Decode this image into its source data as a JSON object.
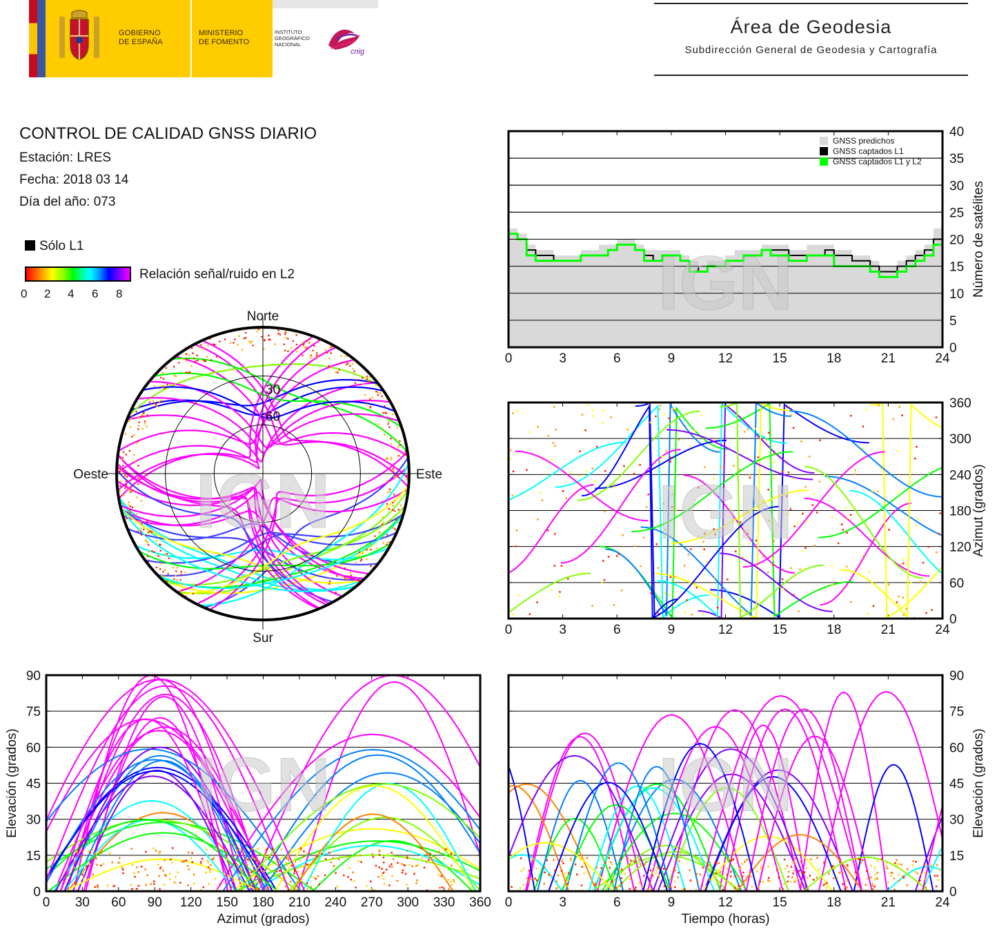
{
  "header": {
    "gov_line1": "GOBIERNO",
    "gov_line2": "DE ESPAÑA",
    "min_line1": "MINISTERIO",
    "min_line2": "DE FOMENTO",
    "ign_line1": "INSTITUTO",
    "ign_line2": "GEOGRÁFICO",
    "ign_line3": "NACIONAL",
    "cnig": "cnig",
    "area_title": "Área de Geodesia",
    "area_subtitle": "Subdirección General de Geodesia y Cartografía"
  },
  "report": {
    "title": "CONTROL DE CALIDAD GNSS DIARIO",
    "station": "Estación: LRES",
    "date": "Fecha: 2018 03 14",
    "doy": "Día del año: 073",
    "legend_l1": "Sólo L1",
    "snr_label": "Relación señal/ruido en L2",
    "snr_ticks": [
      "0",
      "2",
      "4",
      "6",
      "8"
    ]
  },
  "colors": {
    "snr_scale": [
      "#ff0000",
      "#ff8000",
      "#ffff00",
      "#80ff00",
      "#00ff00",
      "#00ffc0",
      "#00ffff",
      "#0080ff",
      "#0000ff",
      "#8000ff",
      "#ff00ff"
    ],
    "l1_only": "#000000",
    "predicted": "#d9d9d9",
    "l1l2": "#00ff00",
    "watermark": "#c8c8c8"
  },
  "chart_data": [
    {
      "id": "satellite_count",
      "type": "area",
      "watermark": "IGN",
      "x_ticks": [
        "0",
        "3",
        "6",
        "9",
        "12",
        "15",
        "18",
        "21",
        "24"
      ],
      "y_ticks": [
        "0",
        "5",
        "10",
        "15",
        "20",
        "25",
        "30",
        "35",
        "40"
      ],
      "xlim": [
        0,
        24
      ],
      "ylim": [
        0,
        40
      ],
      "ylabel": "Número de satélites",
      "grid": true,
      "legend_position": "top-right",
      "legend": [
        "GNSS predichos",
        "GNSS captados L1",
        "GNSS captados L1 y L2"
      ],
      "x": [
        0,
        0.5,
        1,
        1.5,
        2,
        2.5,
        3,
        3.5,
        4,
        4.5,
        5,
        5.5,
        6,
        6.5,
        7,
        7.5,
        8,
        8.5,
        9,
        9.5,
        10,
        10.5,
        11,
        11.5,
        12,
        12.5,
        13,
        13.5,
        14,
        14.5,
        15,
        15.5,
        16,
        16.5,
        17,
        17.5,
        18,
        18.5,
        19,
        19.5,
        20,
        20.5,
        21,
        21.5,
        22,
        22.5,
        23,
        23.5,
        24
      ],
      "series": [
        {
          "name": "GNSS predichos",
          "values": [
            22,
            21,
            19,
            18,
            18,
            17,
            17,
            17,
            18,
            18,
            19,
            19,
            20,
            20,
            19,
            18,
            18,
            18,
            18,
            17,
            16,
            15,
            16,
            16,
            17,
            18,
            18,
            18,
            19,
            19,
            19,
            18,
            18,
            19,
            19,
            19,
            18,
            18,
            17,
            17,
            16,
            15,
            15,
            16,
            17,
            18,
            19,
            22,
            20
          ]
        },
        {
          "name": "GNSS captados L1",
          "values": [
            21,
            20,
            18,
            17,
            17,
            16,
            16,
            16,
            17,
            17,
            17,
            18,
            19,
            19,
            18,
            17,
            16,
            17,
            17,
            16,
            15,
            14,
            15,
            15,
            16,
            16,
            17,
            17,
            18,
            18,
            18,
            17,
            17,
            17,
            17,
            18,
            17,
            17,
            16,
            16,
            15,
            14,
            14,
            15,
            16,
            17,
            18,
            20,
            19
          ]
        },
        {
          "name": "GNSS captados L1 y L2",
          "values": [
            21,
            20,
            17,
            16,
            16,
            16,
            16,
            16,
            17,
            17,
            17,
            18,
            19,
            19,
            18,
            16,
            16,
            17,
            17,
            16,
            14,
            14,
            15,
            15,
            16,
            16,
            17,
            17,
            18,
            17,
            17,
            16,
            16,
            17,
            17,
            17,
            15,
            15,
            15,
            15,
            14,
            13,
            13,
            14,
            15,
            16,
            17,
            19,
            18
          ]
        }
      ]
    },
    {
      "id": "skyplot",
      "type": "scatter",
      "watermark": "IGN",
      "labels": {
        "north": "Norte",
        "south": "Sur",
        "east": "Este",
        "west": "Oeste",
        "ring1": "30",
        "ring2": "60"
      }
    },
    {
      "id": "azimuth_vs_time",
      "type": "scatter",
      "watermark": "IGN",
      "x_ticks": [
        "0",
        "3",
        "6",
        "9",
        "12",
        "15",
        "18",
        "21",
        "24"
      ],
      "y_ticks": [
        "0",
        "60",
        "120",
        "180",
        "240",
        "300",
        "360"
      ],
      "xlim": [
        0,
        24
      ],
      "ylim": [
        0,
        360
      ],
      "ylabel": "Azimut (grados)",
      "grid": true
    },
    {
      "id": "elevation_vs_azimuth",
      "type": "scatter",
      "watermark": "IGN",
      "x_ticks": [
        "0",
        "30",
        "60",
        "90",
        "120",
        "150",
        "180",
        "210",
        "240",
        "270",
        "300",
        "330",
        "360"
      ],
      "y_ticks": [
        "0",
        "15",
        "30",
        "45",
        "60",
        "75",
        "90"
      ],
      "xlim": [
        0,
        360
      ],
      "ylim": [
        0,
        90
      ],
      "xlabel": "Azimut (grados)",
      "ylabel": "Elevación (grados)",
      "grid": true
    },
    {
      "id": "elevation_vs_time",
      "type": "scatter",
      "watermark": "IGN",
      "x_ticks": [
        "0",
        "3",
        "6",
        "9",
        "12",
        "15",
        "18",
        "21",
        "24"
      ],
      "y_ticks": [
        "0",
        "15",
        "30",
        "45",
        "60",
        "75",
        "90"
      ],
      "xlim": [
        0,
        24
      ],
      "ylim": [
        0,
        90
      ],
      "xlabel": "Tiempo (horas)",
      "ylabel": "Elevación (grados)",
      "grid": true
    }
  ]
}
